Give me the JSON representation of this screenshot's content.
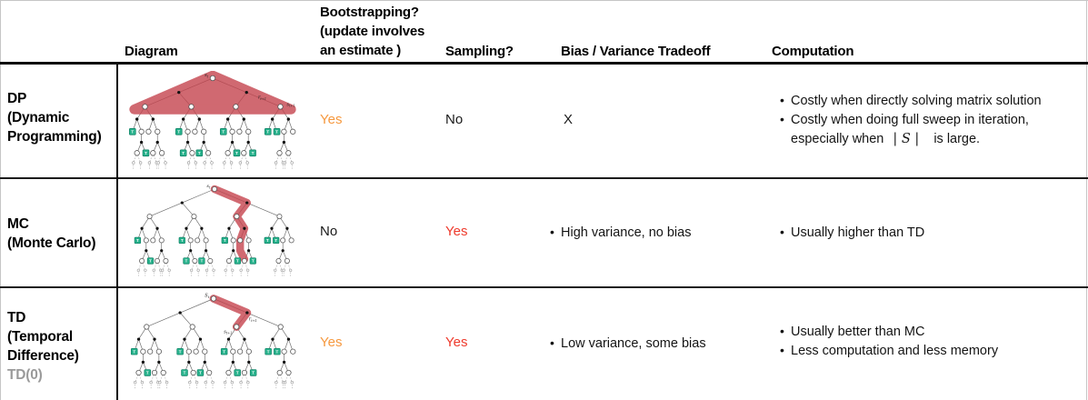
{
  "colors": {
    "yes_orange": "#f6993f",
    "yes_red": "#ee3a2c",
    "text_black": "#1a1a1a",
    "label_gray": "#9a9a9a",
    "highlight_red": "#c5444e",
    "terminal_teal": "#29b38d"
  },
  "headers": {
    "diagram": "Diagram",
    "bootstrapping": [
      "Bootstrapping?",
      "(update involves",
      "an estimate )"
    ],
    "sampling": "Sampling?",
    "bias_variance": "Bias / Variance Tradeoff",
    "computation": "Computation"
  },
  "rows": [
    {
      "label_lines": [
        "DP",
        "(Dynamic",
        "Programming)"
      ],
      "diagram": {
        "root": "st",
        "reward": "rt+1",
        "next_state": "st+1",
        "terminal": "T"
      },
      "bootstrapping": "Yes",
      "sampling": "No",
      "bias_variance": "X",
      "computation_bullet1": "Costly when directly solving matrix solution",
      "computation_bullet2": "Costly when doing full sweep in iteration,",
      "computation_bullet2_cont_pre": "especially when",
      "computation_s_cardinality": "| S |",
      "computation_bullet2_cont_post": "is large."
    },
    {
      "label_lines": [
        "MC",
        "(Monte Carlo)"
      ],
      "diagram": {
        "root": "st",
        "terminal": "T"
      },
      "bootstrapping": "No",
      "sampling": "Yes",
      "bias_variance": "High variance, no bias",
      "computation_bullet1": "Usually higher than TD"
    },
    {
      "label_lines": [
        "TD",
        "(Temporal",
        "Difference)"
      ],
      "label_variant": "TD(0)",
      "diagram": {
        "root": "St",
        "reward": "rt+1",
        "next_state": "st+1",
        "terminal": "T"
      },
      "bootstrapping": "Yes",
      "sampling": "Yes",
      "bias_variance": "Low variance, some bias",
      "computation_bullet1": "Usually better than MC",
      "computation_bullet2": "Less computation and less memory"
    }
  ]
}
